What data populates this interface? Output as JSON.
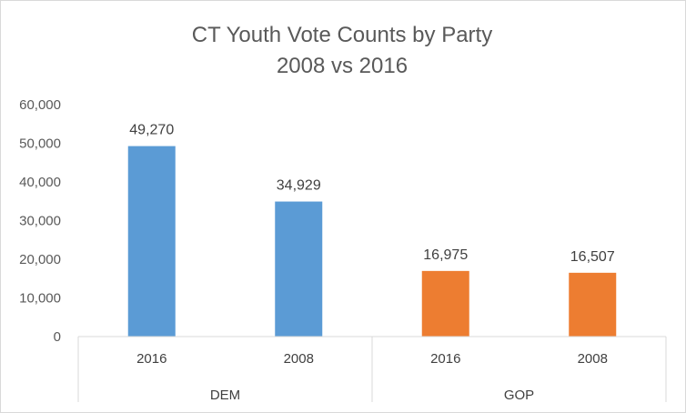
{
  "chart_data": {
    "type": "bar",
    "title_lines": [
      "CT Youth Vote Counts by Party",
      "2008 vs 2016"
    ],
    "groups": [
      {
        "name": "DEM",
        "color": "#5b9bd5",
        "bars": [
          {
            "category": "2016",
            "value": 49270,
            "label": "49,270"
          },
          {
            "category": "2008",
            "value": 34929,
            "label": "34,929"
          }
        ]
      },
      {
        "name": "GOP",
        "color": "#ed7d31",
        "bars": [
          {
            "category": "2016",
            "value": 16975,
            "label": "16,975"
          },
          {
            "category": "2008",
            "value": 16507,
            "label": "16,507"
          }
        ]
      }
    ],
    "ylim": [
      0,
      60000
    ],
    "y_ticks": [
      "0",
      "10,000",
      "20,000",
      "30,000",
      "40,000",
      "50,000",
      "60,000"
    ],
    "y_tick_values": [
      0,
      10000,
      20000,
      30000,
      40000,
      50000,
      60000
    ],
    "grid": false,
    "legend": "none"
  }
}
